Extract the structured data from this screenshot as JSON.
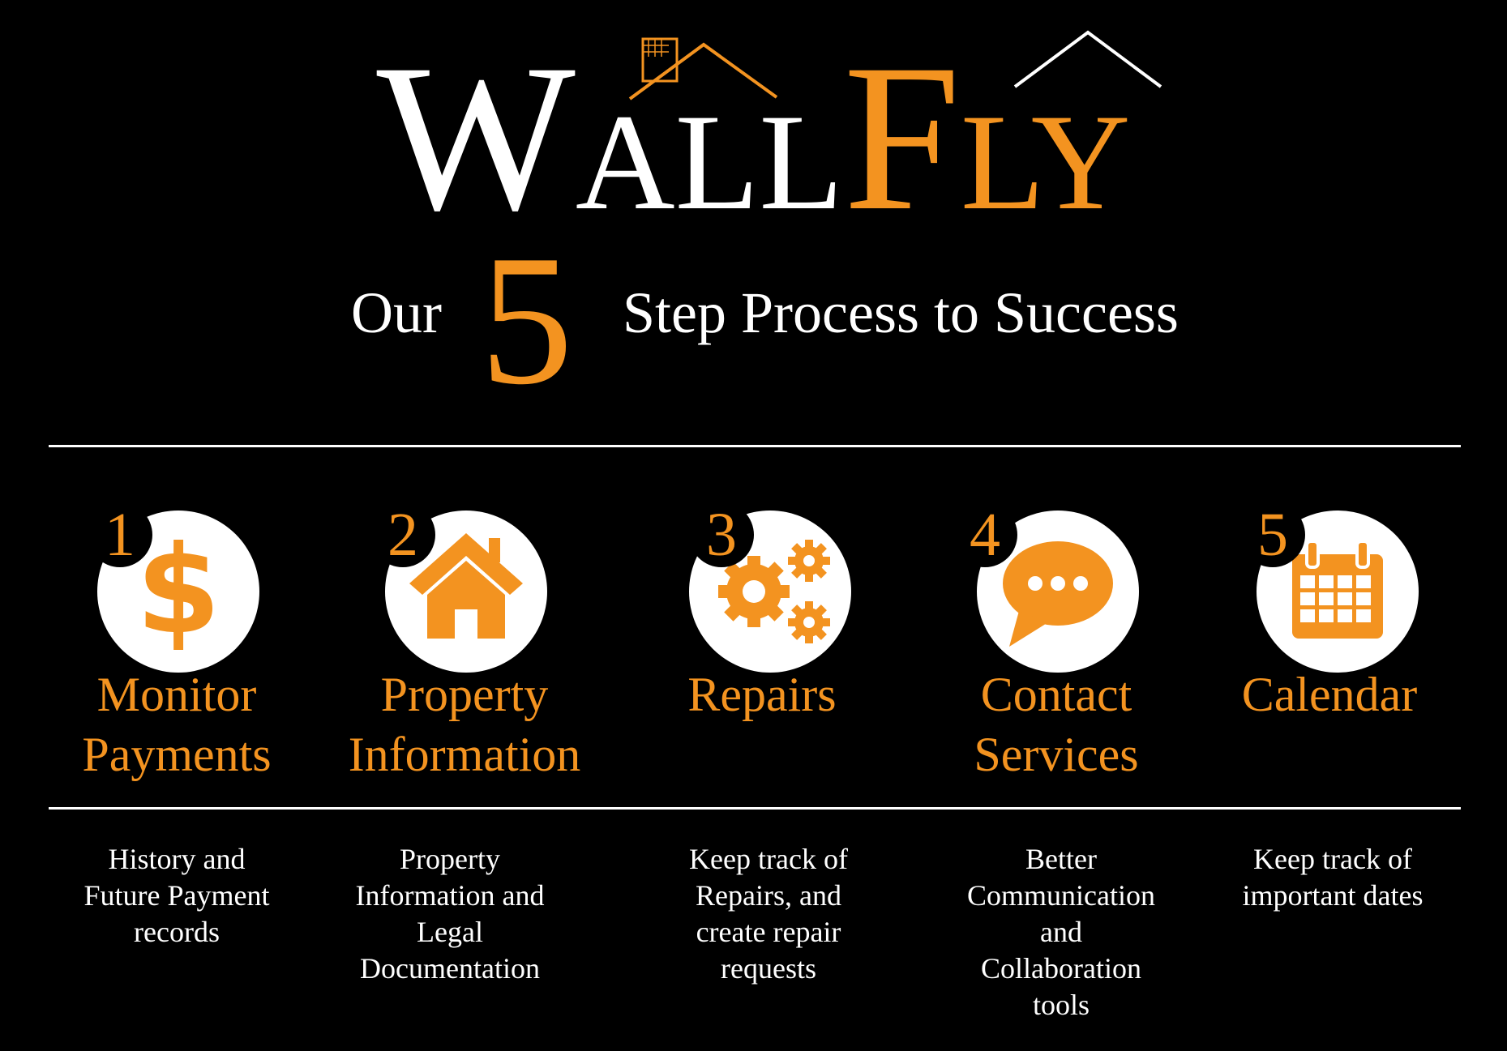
{
  "brand": {
    "wall_initial": "W",
    "wall_rest": "ALL",
    "fly_initial": "F",
    "fly_rest": "LY",
    "color_white": "#ffffff",
    "color_orange": "#f39320"
  },
  "tagline": {
    "prefix": "Our",
    "number": "5",
    "suffix": "Step Process to Success"
  },
  "steps": [
    {
      "number": "1",
      "icon": "dollar-icon",
      "title_line1": "Monitor",
      "title_line2": "Payments",
      "desc_lines": [
        "History and",
        "Future Payment",
        "records"
      ]
    },
    {
      "number": "2",
      "icon": "house-icon",
      "title_line1": "Property",
      "title_line2": "Information",
      "desc_lines": [
        "Property",
        "Information and",
        "Legal",
        "Documentation"
      ]
    },
    {
      "number": "3",
      "icon": "gears-icon",
      "title_line1": "Repairs",
      "title_line2": "",
      "desc_lines": [
        "Keep track of",
        "Repairs, and",
        "create repair",
        "requests"
      ]
    },
    {
      "number": "4",
      "icon": "chat-bubble-icon",
      "title_line1": "Contact",
      "title_line2": "Services",
      "desc_lines": [
        "Better",
        "Communication",
        "and",
        "Collaboration",
        "tools"
      ]
    },
    {
      "number": "5",
      "icon": "calendar-icon",
      "title_line1": "Calendar",
      "title_line2": "",
      "desc_lines": [
        "Keep track of",
        "important dates"
      ]
    }
  ]
}
